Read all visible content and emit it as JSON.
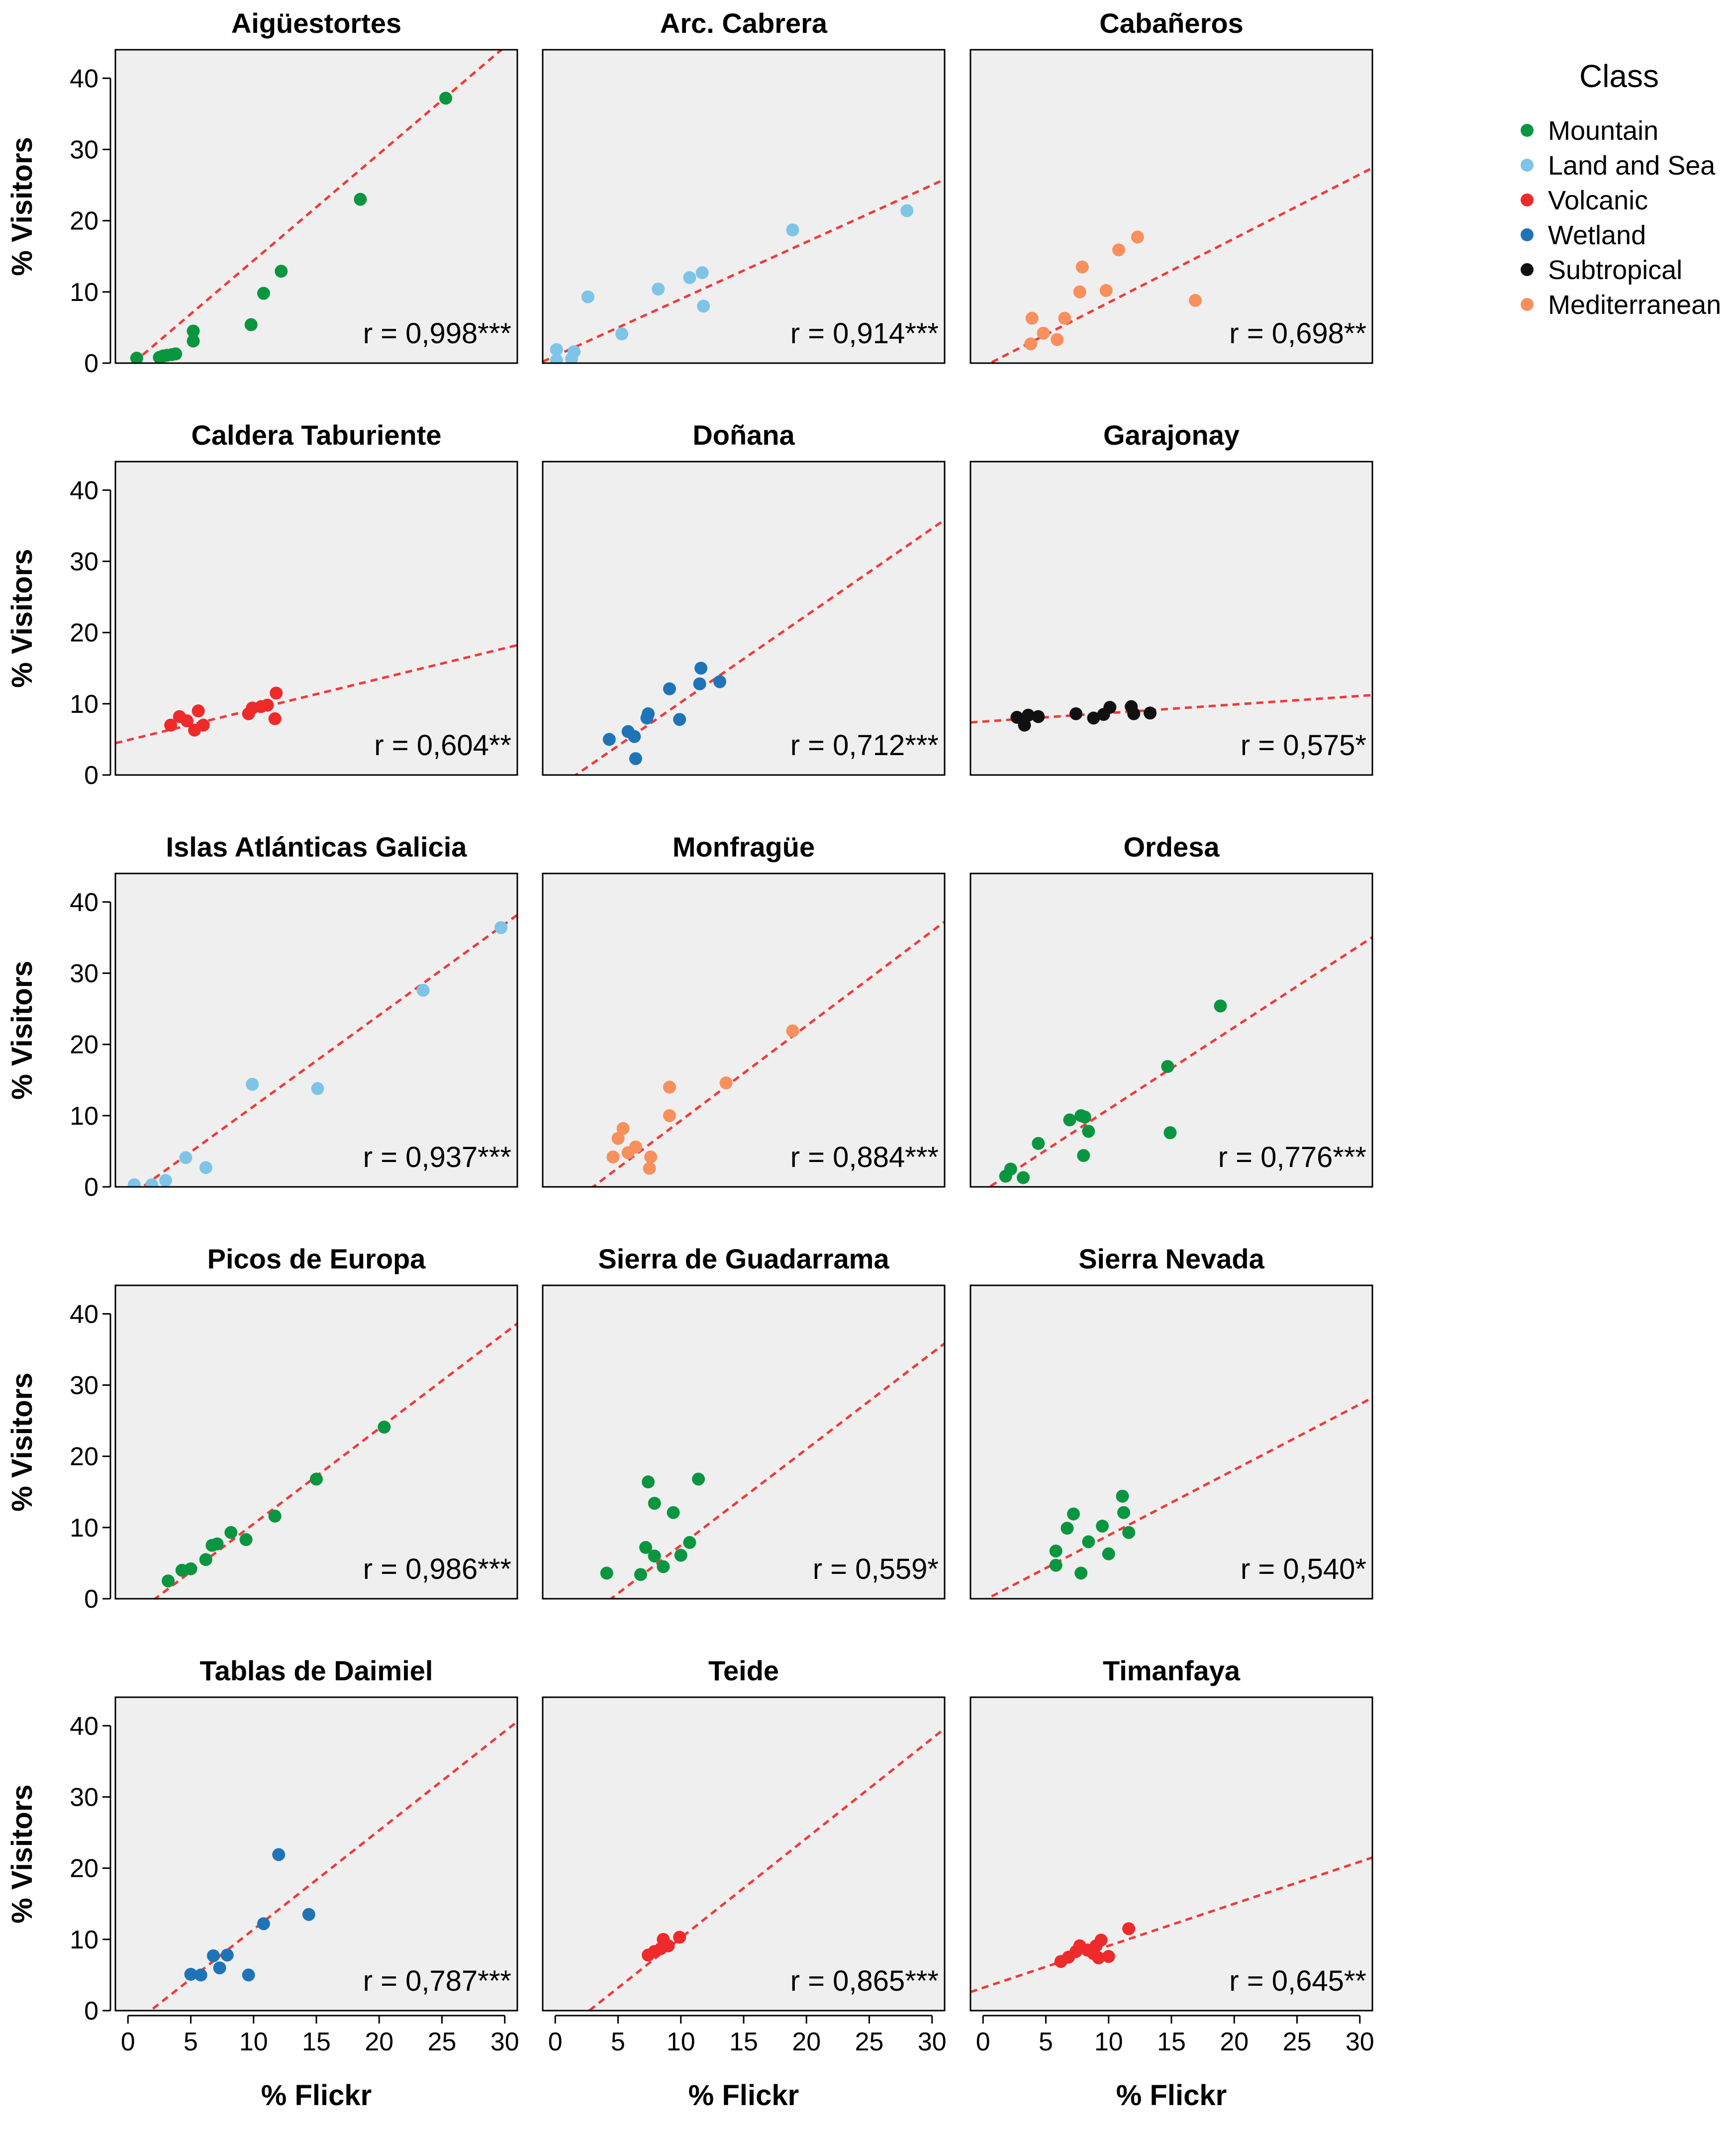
{
  "chart_data": {
    "type": "scatter",
    "xlabel": "% Flickr",
    "ylabel": "% Visitors",
    "xlim": [
      -1,
      31
    ],
    "ylim": [
      0,
      44
    ],
    "xticks": [
      "0",
      "5",
      "10",
      "15",
      "20",
      "25",
      "30"
    ],
    "yticks": [
      "0",
      "10",
      "20",
      "30",
      "40"
    ],
    "legend": {
      "title": "Class",
      "position": "top-right",
      "items": [
        {
          "label": "Mountain",
          "color": "#0a9640"
        },
        {
          "label": "Land and Sea",
          "color": "#7ec4e6"
        },
        {
          "label": "Volcanic",
          "color": "#ee2a2a"
        },
        {
          "label": "Wetland",
          "color": "#1f74b8"
        },
        {
          "label": "Subtropical",
          "color": "#111111"
        },
        {
          "label": "Mediterranean",
          "color": "#f7905c"
        }
      ]
    },
    "panels": [
      {
        "title": "Aigüestortes",
        "color": "#0a9640",
        "r_label": "r = 0,998***",
        "line": [
          -0.6,
          1.5
        ],
        "points": [
          [
            0.7,
            0.7
          ],
          [
            2.5,
            0.8
          ],
          [
            2.8,
            1.0
          ],
          [
            3.1,
            1.1
          ],
          [
            3.5,
            1.2
          ],
          [
            3.8,
            1.3
          ],
          [
            5.2,
            3.1
          ],
          [
            5.2,
            4.5
          ],
          [
            9.8,
            5.4
          ],
          [
            10.8,
            9.8
          ],
          [
            12.2,
            12.9
          ],
          [
            18.5,
            23.0
          ],
          [
            25.3,
            37.2
          ]
        ]
      },
      {
        "title": "Arc. Cabrera",
        "color": "#7ec4e6",
        "r_label": "r = 0,914***",
        "line": [
          1.0,
          0.8
        ],
        "points": [
          [
            0.1,
            0.4
          ],
          [
            0.1,
            1.9
          ],
          [
            1.3,
            0.6
          ],
          [
            1.5,
            1.6
          ],
          [
            2.6,
            9.3
          ],
          [
            5.3,
            4.1
          ],
          [
            8.2,
            10.4
          ],
          [
            10.7,
            12.0
          ],
          [
            11.7,
            12.7
          ],
          [
            11.8,
            8.0
          ],
          [
            18.9,
            18.7
          ],
          [
            28.0,
            21.4
          ]
        ]
      },
      {
        "title": "Cabañeros",
        "color": "#f7905c",
        "r_label": "r = 0,698**",
        "line": [
          -0.5,
          0.9
        ],
        "points": [
          [
            3.8,
            2.7
          ],
          [
            3.9,
            6.3
          ],
          [
            4.8,
            4.2
          ],
          [
            5.9,
            3.3
          ],
          [
            6.5,
            6.3
          ],
          [
            7.7,
            10.0
          ],
          [
            7.9,
            13.5
          ],
          [
            9.8,
            10.2
          ],
          [
            10.8,
            15.9
          ],
          [
            12.3,
            17.7
          ],
          [
            16.9,
            8.8
          ]
        ]
      },
      {
        "title": "Caldera Taburiente",
        "color": "#ee2a2a",
        "r_label": "r = 0,604**",
        "line": [
          4.9,
          0.43
        ],
        "points": [
          [
            3.4,
            7.0
          ],
          [
            4.1,
            8.2
          ],
          [
            4.7,
            7.6
          ],
          [
            5.3,
            6.3
          ],
          [
            5.6,
            9.0
          ],
          [
            6.0,
            7.0
          ],
          [
            9.6,
            8.6
          ],
          [
            9.9,
            9.4
          ],
          [
            10.6,
            9.6
          ],
          [
            11.1,
            9.8
          ],
          [
            11.7,
            7.9
          ],
          [
            11.8,
            11.5
          ]
        ]
      },
      {
        "title": "Doñana",
        "color": "#1f74b8",
        "r_label": "r = 0,712***",
        "line": [
          -2.0,
          1.22
        ],
        "points": [
          [
            4.3,
            5.0
          ],
          [
            5.8,
            6.1
          ],
          [
            6.3,
            5.4
          ],
          [
            6.4,
            2.3
          ],
          [
            7.3,
            8.0
          ],
          [
            7.4,
            8.6
          ],
          [
            9.1,
            12.1
          ],
          [
            9.9,
            7.8
          ],
          [
            11.5,
            12.8
          ],
          [
            11.6,
            15.0
          ],
          [
            13.1,
            13.1
          ]
        ]
      },
      {
        "title": "Garajonay",
        "color": "#111111",
        "r_label": "r = 0,575*",
        "line": [
          7.5,
          0.12
        ],
        "points": [
          [
            2.7,
            8.1
          ],
          [
            3.3,
            7.0
          ],
          [
            3.6,
            8.4
          ],
          [
            4.4,
            8.2
          ],
          [
            7.4,
            8.6
          ],
          [
            8.8,
            8.0
          ],
          [
            9.6,
            8.5
          ],
          [
            10.1,
            9.5
          ],
          [
            11.8,
            9.6
          ],
          [
            12.0,
            8.6
          ],
          [
            13.3,
            8.7
          ]
        ]
      },
      {
        "title": "Islas Atlánticas Galicia",
        "color": "#7ec4e6",
        "r_label": "r = 0,937***",
        "line": [
          -1.5,
          1.28
        ],
        "points": [
          [
            0.5,
            0.3
          ],
          [
            1.9,
            0.3
          ],
          [
            3.0,
            0.9
          ],
          [
            4.6,
            4.1
          ],
          [
            6.2,
            2.7
          ],
          [
            9.9,
            14.4
          ],
          [
            15.1,
            13.8
          ],
          [
            23.5,
            27.6
          ],
          [
            29.7,
            36.4
          ]
        ]
      },
      {
        "title": "Monfragüe",
        "color": "#f7905c",
        "r_label": "r = 0,884***",
        "line": [
          -4.0,
          1.33
        ],
        "points": [
          [
            4.6,
            4.2
          ],
          [
            5.0,
            6.8
          ],
          [
            5.4,
            8.2
          ],
          [
            5.8,
            4.8
          ],
          [
            6.4,
            5.6
          ],
          [
            7.5,
            2.6
          ],
          [
            7.6,
            4.2
          ],
          [
            9.1,
            10.0
          ],
          [
            9.1,
            14.0
          ],
          [
            13.6,
            14.6
          ],
          [
            18.9,
            21.9
          ]
        ]
      },
      {
        "title": "Ordesa",
        "color": "#0a9640",
        "r_label": "r = 0,776***",
        "line": [
          -0.6,
          1.15
        ],
        "points": [
          [
            1.8,
            1.5
          ],
          [
            2.2,
            2.5
          ],
          [
            3.2,
            1.3
          ],
          [
            4.4,
            6.1
          ],
          [
            6.9,
            9.4
          ],
          [
            7.8,
            10.0
          ],
          [
            8.0,
            4.4
          ],
          [
            8.1,
            9.8
          ],
          [
            8.4,
            7.8
          ],
          [
            14.7,
            16.9
          ],
          [
            14.9,
            7.6
          ],
          [
            18.9,
            25.4
          ]
        ]
      },
      {
        "title": "Picos de Europa",
        "color": "#0a9640",
        "r_label": "r = 0,986***",
        "line": [
          -2.9,
          1.34
        ],
        "points": [
          [
            3.2,
            2.5
          ],
          [
            4.3,
            4.0
          ],
          [
            5.0,
            4.2
          ],
          [
            6.2,
            5.5
          ],
          [
            6.7,
            7.5
          ],
          [
            7.1,
            7.7
          ],
          [
            8.2,
            9.3
          ],
          [
            9.4,
            8.3
          ],
          [
            11.7,
            11.6
          ],
          [
            15.0,
            16.8
          ],
          [
            20.4,
            24.1
          ]
        ]
      },
      {
        "title": "Sierra de Guadarrama",
        "color": "#0a9640",
        "r_label": "r = 0,559*",
        "line": [
          -6.0,
          1.35
        ],
        "points": [
          [
            4.1,
            3.6
          ],
          [
            6.8,
            3.4
          ],
          [
            7.2,
            7.2
          ],
          [
            7.4,
            16.4
          ],
          [
            7.9,
            13.4
          ],
          [
            7.9,
            6.0
          ],
          [
            8.6,
            4.5
          ],
          [
            9.4,
            12.1
          ],
          [
            10.0,
            6.1
          ],
          [
            10.7,
            7.9
          ],
          [
            11.4,
            16.8
          ]
        ]
      },
      {
        "title": "Sierra Nevada",
        "color": "#0a9640",
        "r_label": "r = 0,540*",
        "line": [
          -0.3,
          0.92
        ],
        "points": [
          [
            5.8,
            4.7
          ],
          [
            5.8,
            6.7
          ],
          [
            6.7,
            9.9
          ],
          [
            7.2,
            11.9
          ],
          [
            7.8,
            3.6
          ],
          [
            8.4,
            8.0
          ],
          [
            9.5,
            10.2
          ],
          [
            10.0,
            6.3
          ],
          [
            11.1,
            14.4
          ],
          [
            11.2,
            12.1
          ],
          [
            11.6,
            9.3
          ]
        ]
      },
      {
        "title": "Tablas de Daimiel",
        "color": "#1f74b8",
        "r_label": "r = 0,787***",
        "line": [
          -2.5,
          1.39
        ],
        "points": [
          [
            5.0,
            5.1
          ],
          [
            5.8,
            5.0
          ],
          [
            6.8,
            7.7
          ],
          [
            7.3,
            6.0
          ],
          [
            7.9,
            7.8
          ],
          [
            9.6,
            5.0
          ],
          [
            10.8,
            12.2
          ],
          [
            12.0,
            21.9
          ],
          [
            14.4,
            13.5
          ]
        ]
      },
      {
        "title": "Teide",
        "color": "#ee2a2a",
        "r_label": "r = 0,865***",
        "line": [
          -3.8,
          1.4
        ],
        "points": [
          [
            7.4,
            7.8
          ],
          [
            7.9,
            8.3
          ],
          [
            8.4,
            8.7
          ],
          [
            8.6,
            10.0
          ],
          [
            9.0,
            9.1
          ],
          [
            9.9,
            10.3
          ]
        ]
      },
      {
        "title": "Timanfaya",
        "color": "#ee2a2a",
        "r_label": "r = 0,645**",
        "line": [
          3.2,
          0.59
        ],
        "points": [
          [
            6.2,
            6.9
          ],
          [
            6.8,
            7.5
          ],
          [
            7.4,
            8.3
          ],
          [
            7.7,
            9.1
          ],
          [
            8.3,
            8.5
          ],
          [
            8.8,
            8.0
          ],
          [
            9.0,
            9.1
          ],
          [
            9.2,
            7.4
          ],
          [
            9.4,
            9.9
          ],
          [
            10.0,
            7.6
          ],
          [
            11.6,
            11.5
          ]
        ]
      }
    ]
  }
}
